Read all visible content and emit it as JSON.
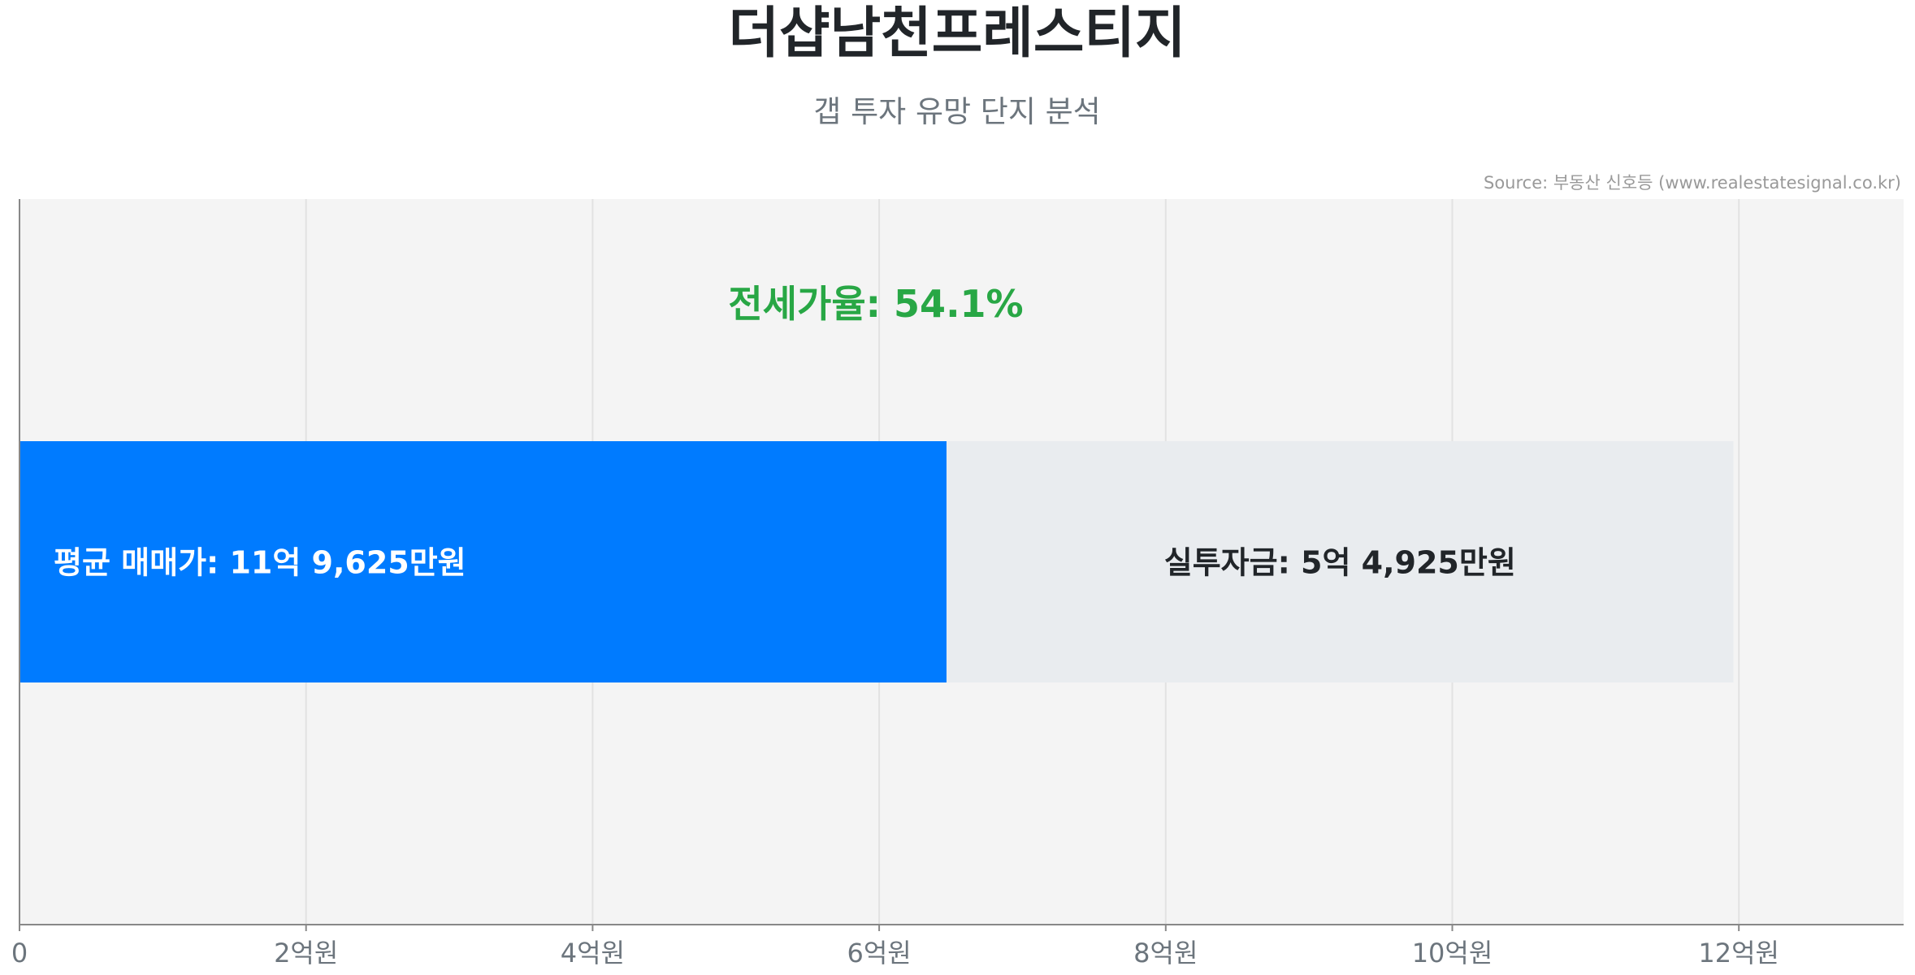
{
  "chart_data": {
    "type": "bar",
    "orientation": "horizontal",
    "stacked": true,
    "title": "더샵남천프레스티지",
    "subtitle": "갭 투자 유망 단지 분석",
    "annotation": "전세가율: 54.1%",
    "series": [
      {
        "key": "jeonse",
        "value": 6.47,
        "color": "#007bff",
        "label": "평균 매매가: 11억 9,625만원",
        "label_color": "#ffffff"
      },
      {
        "key": "investment",
        "value": 5.4925,
        "color": "#e9ecef",
        "label": "실투자금: 5억 4,925만원",
        "label_color": "#212529"
      }
    ],
    "x_ticks": [
      {
        "value": 0,
        "label": "0"
      },
      {
        "value": 2,
        "label": "2억원"
      },
      {
        "value": 4,
        "label": "4억원"
      },
      {
        "value": 6,
        "label": "6억원"
      },
      {
        "value": 8,
        "label": "8억원"
      },
      {
        "value": 10,
        "label": "10억원"
      },
      {
        "value": 12,
        "label": "12억원"
      }
    ],
    "xlim": [
      0,
      13.15
    ],
    "grid": true,
    "colors": {
      "annotation": "#28a745",
      "plot_bg": "#f4f4f4",
      "grid": "#e2e2e2",
      "axis": "#888888"
    },
    "source": "Source: 부동산 신호등 (www.realestatesignal.co.kr)"
  }
}
